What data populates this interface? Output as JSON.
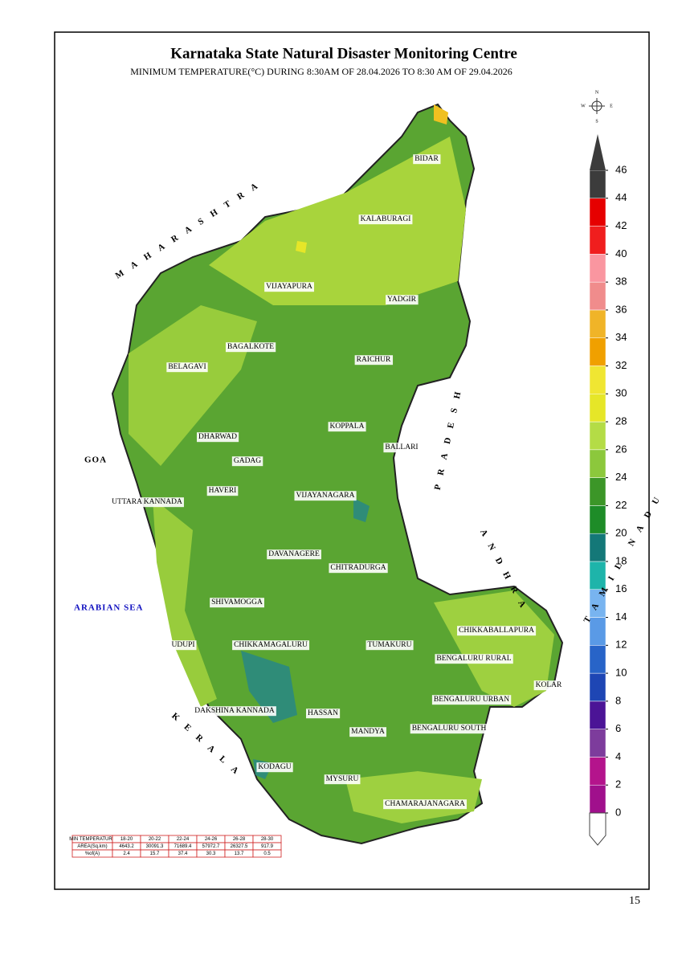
{
  "header": {
    "title": "Karnataka State Natural Disaster Monitoring Centre",
    "subtitle": "MINIMUM TEMPERATURE(°C) DURING 8:30AM OF 28.04.2026 TO 8:30 AM OF 29.04.2026"
  },
  "neighbors": [
    "MAHARASHTRA",
    "PRADESH",
    "ANDHRA",
    "TAMIL NADU",
    "KERALA",
    "GOA",
    "ARABIAN SEA"
  ],
  "districts": [
    "BIDAR",
    "KALABURAGI",
    "VIJAYAPURA",
    "YADGIR",
    "BAGALKOTE",
    "RAICHUR",
    "BELAGAVI",
    "KOPPALA",
    "DHARWAD",
    "BALLARI",
    "GADAG",
    "HAVERI",
    "VIJAYANAGARA",
    "UTTARA KANNADA",
    "DAVANAGERE",
    "CHITRADURGA",
    "SHIVAMOGGA",
    "CHIKKABALLAPURA",
    "UDUPI",
    "CHIKKAMAGALURU",
    "TUMAKURU",
    "BENGALURU RURAL",
    "KOLAR",
    "DAKSHINA KANNADA",
    "HASSAN",
    "BENGALURU URBAN",
    "MANDYA",
    "BENGALURU SOUTH",
    "KODAGU",
    "MYSURU",
    "CHAMARAJANAGARA"
  ],
  "compass": [
    "N",
    "E",
    "S",
    "W"
  ],
  "legend": {
    "ticks": [
      0,
      2,
      4,
      6,
      8,
      10,
      12,
      14,
      16,
      18,
      20,
      22,
      24,
      26,
      28,
      30,
      32,
      34,
      36,
      38,
      40,
      42,
      44,
      46
    ],
    "colors": [
      "#a0108c",
      "#b4148c",
      "#7d3c9c",
      "#4b1496",
      "#1e46b4",
      "#2864c8",
      "#5a9ae6",
      "#78b4f0",
      "#1eb4aa",
      "#147878",
      "#1e8c28",
      "#3c9628",
      "#8cc83c",
      "#b4dc46",
      "#e6e628",
      "#f0e632",
      "#f0a000",
      "#f0b428",
      "#f08c8c",
      "#fa96a0",
      "#f01e1e",
      "#e60000",
      "#3c3c3c"
    ]
  },
  "table": {
    "rows": [
      [
        "MIN TEMPERATURE",
        "18-20",
        "20-22",
        "22-24",
        "24-26",
        "26-28",
        "28-30"
      ],
      [
        "AREA(Sq.km)",
        "4643.2",
        "30091.3",
        "71689.4",
        "57972.7",
        "26327.5",
        "917.9"
      ],
      [
        "%of(A)",
        "2.4",
        "15.7",
        "37.4",
        "30.3",
        "13.7",
        "0.5"
      ]
    ]
  },
  "page_number": "15"
}
